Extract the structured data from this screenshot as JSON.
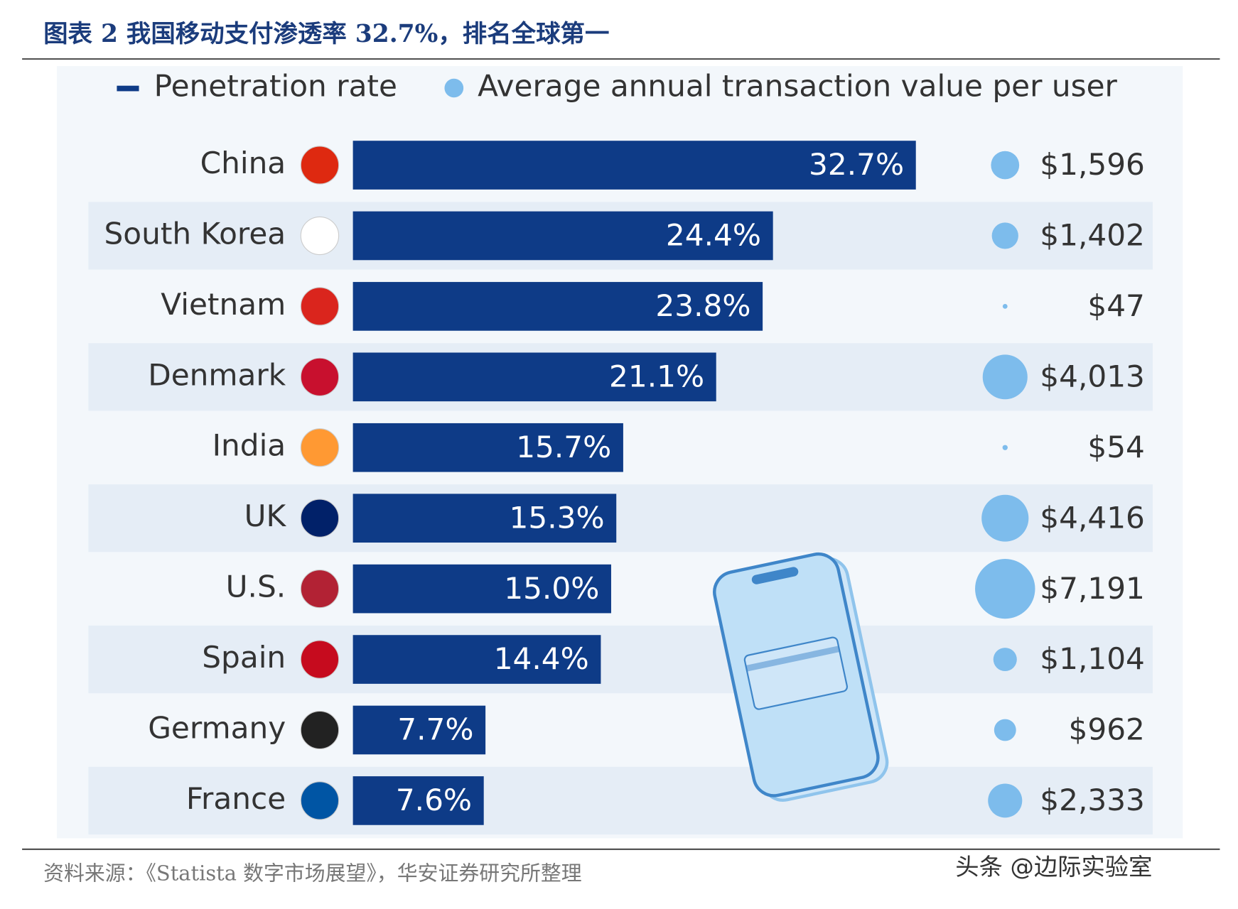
{
  "chart_data": {
    "type": "bar",
    "orientation": "horizontal",
    "title": "图表 2 我国移动支付渗透率 32.7%，排名全球第一",
    "categories": [
      "China",
      "South Korea",
      "Vietnam",
      "Denmark",
      "India",
      "UK",
      "U.S.",
      "Spain",
      "Germany",
      "France"
    ],
    "series": [
      {
        "name": "Penetration rate",
        "color": "#0e3b87",
        "values": [
          32.7,
          24.4,
          23.8,
          21.1,
          15.7,
          15.3,
          15.0,
          14.4,
          7.7,
          7.6
        ],
        "value_labels": [
          "32.7%",
          "24.4%",
          "23.8%",
          "21.1%",
          "15.7%",
          "15.3%",
          "15.0%",
          "14.4%",
          "7.7%",
          "7.6%"
        ]
      },
      {
        "name": "Average annual transaction value per user",
        "color": "#7dbcec",
        "mark": "bubble",
        "values": [
          1596,
          1402,
          47,
          4013,
          54,
          4416,
          7191,
          1104,
          962,
          2333
        ],
        "value_labels": [
          "$1,596",
          "$1,402",
          "$47",
          "$4,013",
          "$54",
          "$4,416",
          "$7,191",
          "$1,104",
          "$962",
          "$2,333"
        ]
      }
    ],
    "source": "资料来源：《Statista 数字市场展望》，华安证券研究所整理",
    "watermark": "头条 @边际实验室"
  }
}
